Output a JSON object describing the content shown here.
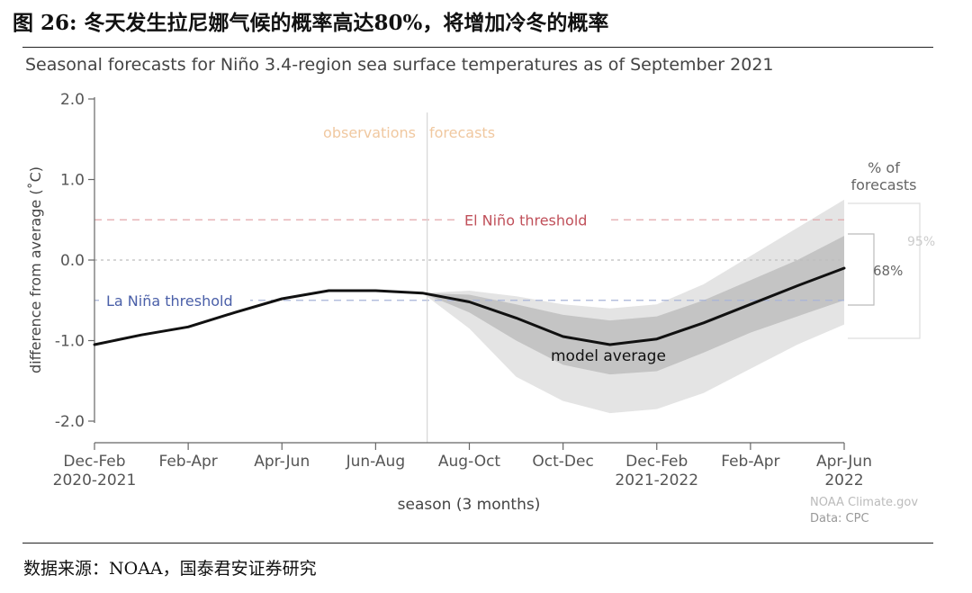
{
  "figure": {
    "title": "图 26: 冬天发生拉尼娜气候的概率高达80%，将增加冷冬的概率",
    "source": "数据来源：NOAA，国泰君安证券研究"
  },
  "colors": {
    "model_line": "#111111",
    "band_95": "#e4e4e4",
    "band_68": "#c4c4c4",
    "el_nino_threshold": "#c0505a",
    "la_nina_threshold": "#4a5fa8",
    "observations_forecasts_label": "#f0c8a0",
    "axis": "#666666",
    "grid": "#bdbdbd"
  },
  "chart_data": {
    "type": "line",
    "title": "Seasonal forecasts for Niño 3.4-region sea surface temperatures as of September 2021",
    "xlabel": "season (3 months)",
    "ylabel": "difference from average (˚C)",
    "ylim": [
      -2.0,
      2.0
    ],
    "yticks": [
      "2.0",
      "1.0",
      "0.0",
      "-1.0",
      "-2.0"
    ],
    "ytick_values": [
      2.0,
      1.0,
      0.0,
      -1.0,
      -2.0
    ],
    "x_range": [
      0,
      8
    ],
    "xticks": [
      {
        "label": "Dec-Feb",
        "sublabel": "2020-2021",
        "x": 0
      },
      {
        "label": "Feb-Apr",
        "sublabel": "",
        "x": 1
      },
      {
        "label": "Apr-Jun",
        "sublabel": "",
        "x": 2
      },
      {
        "label": "Jun-Aug",
        "sublabel": "",
        "x": 3
      },
      {
        "label": "Aug-Oct",
        "sublabel": "",
        "x": 4
      },
      {
        "label": "Oct-Dec",
        "sublabel": "",
        "x": 5
      },
      {
        "label": "Dec-Feb",
        "sublabel": "2021-2022",
        "x": 6
      },
      {
        "label": "Feb-Apr",
        "sublabel": "",
        "x": 7
      },
      {
        "label": "Apr-Jun",
        "sublabel": "2022",
        "x": 8
      }
    ],
    "series": [
      {
        "name": "model average",
        "points": [
          [
            0,
            -1.05
          ],
          [
            0.5,
            -0.93
          ],
          [
            1,
            -0.83
          ],
          [
            1.5,
            -0.65
          ],
          [
            2,
            -0.48
          ],
          [
            2.5,
            -0.38
          ],
          [
            3,
            -0.38
          ],
          [
            3.5,
            -0.41
          ],
          [
            4,
            -0.52
          ],
          [
            4.5,
            -0.72
          ],
          [
            5,
            -0.95
          ],
          [
            5.5,
            -1.05
          ],
          [
            6,
            -0.98
          ],
          [
            6.5,
            -0.78
          ],
          [
            7,
            -0.55
          ],
          [
            7.5,
            -0.32
          ],
          [
            8,
            -0.1
          ]
        ]
      }
    ],
    "band_95": {
      "upper": [
        [
          3.5,
          -0.41
        ],
        [
          4,
          -0.38
        ],
        [
          4.5,
          -0.45
        ],
        [
          5,
          -0.55
        ],
        [
          5.5,
          -0.6
        ],
        [
          6,
          -0.55
        ],
        [
          6.5,
          -0.3
        ],
        [
          7,
          0.05
        ],
        [
          7.5,
          0.4
        ],
        [
          8,
          0.75
        ]
      ],
      "lower": [
        [
          3.5,
          -0.41
        ],
        [
          4,
          -0.85
        ],
        [
          4.5,
          -1.45
        ],
        [
          5,
          -1.75
        ],
        [
          5.5,
          -1.9
        ],
        [
          6,
          -1.85
        ],
        [
          6.5,
          -1.65
        ],
        [
          7,
          -1.35
        ],
        [
          7.5,
          -1.05
        ],
        [
          8,
          -0.8
        ]
      ]
    },
    "band_68": {
      "upper": [
        [
          3.5,
          -0.41
        ],
        [
          4,
          -0.43
        ],
        [
          4.5,
          -0.55
        ],
        [
          5,
          -0.68
        ],
        [
          5.5,
          -0.75
        ],
        [
          6,
          -0.7
        ],
        [
          6.5,
          -0.5
        ],
        [
          7,
          -0.25
        ],
        [
          7.5,
          0.0
        ],
        [
          8,
          0.3
        ]
      ],
      "lower": [
        [
          3.5,
          -0.41
        ],
        [
          4,
          -0.65
        ],
        [
          4.5,
          -1.0
        ],
        [
          5,
          -1.3
        ],
        [
          5.5,
          -1.42
        ],
        [
          6,
          -1.38
        ],
        [
          6.5,
          -1.15
        ],
        [
          7,
          -0.9
        ],
        [
          7.5,
          -0.7
        ],
        [
          8,
          -0.5
        ]
      ]
    },
    "thresholds": [
      {
        "label": "El Niño threshold",
        "value": 0.5
      },
      {
        "label": "La Niña threshold",
        "value": -0.5
      }
    ],
    "zero_line": 0.0,
    "divider_x": 3.55,
    "annotations": {
      "observations": "observations",
      "forecasts": "forecasts",
      "model_average": "model average",
      "pct_title_1": "% of",
      "pct_title_2": "forecasts",
      "pct_95": "95%",
      "pct_68": "68%",
      "credit_1": "NOAA Climate.gov",
      "credit_2": "Data: CPC"
    },
    "grid": false,
    "legend": "none"
  }
}
